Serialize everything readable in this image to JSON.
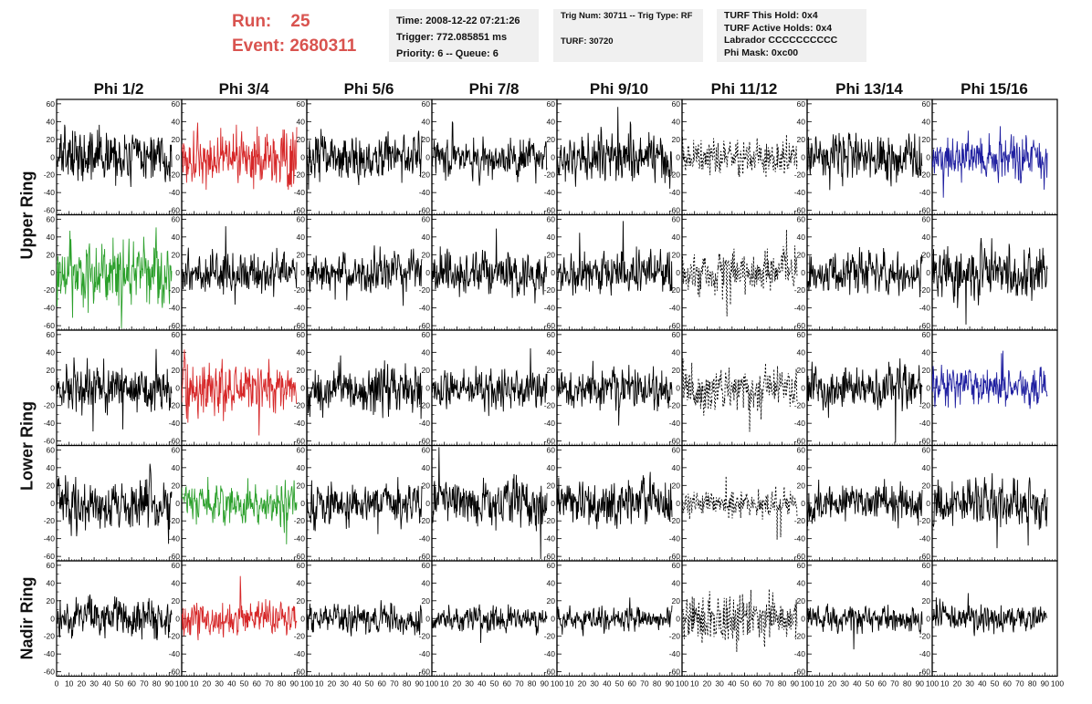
{
  "header": {
    "run_label": "Run:",
    "run_value": "25",
    "event_label": "Event:",
    "event_value": "2680311",
    "accent_color": "#d9534f"
  },
  "info": {
    "time": "Time: 2008-12-22 07:21:26",
    "trigger": "Trigger: 772.085851 ms",
    "priority": "Priority: 6 -- Queue: 6",
    "trig": "Trig Num: 30711 -- Trig Type: RF",
    "turf": "TURF: 30720",
    "turf_hold": "TURF This Hold: 0x4",
    "turf_active": "TURF Active Holds: 0x4",
    "labrador": "Labrador CCCCCCCCCC",
    "phi_mask": "Phi Mask: 0xc00"
  },
  "chart_data": {
    "type": "line",
    "columns": [
      "Phi 1/2",
      "Phi 3/4",
      "Phi 5/6",
      "Phi 7/8",
      "Phi 9/10",
      "Phi 11/12",
      "Phi 13/14",
      "Phi 15/16"
    ],
    "ring_labels": [
      "Upper Ring",
      "Lower Ring",
      "Nadir Ring"
    ],
    "rows_per_ring": [
      2,
      2,
      1
    ],
    "ylim": [
      -65,
      65
    ],
    "yticks": [
      -60,
      -40,
      -20,
      0,
      20,
      40,
      60
    ],
    "xlim": [
      0,
      100
    ],
    "xticks": [
      0,
      10,
      20,
      30,
      40,
      50,
      60,
      70,
      80,
      90,
      100
    ],
    "x_tick_labels": [
      "0",
      "10",
      "20",
      "30",
      "40",
      "50",
      "60",
      "70",
      "80",
      "90",
      "100"
    ],
    "n_samples": 260,
    "x_end": 92,
    "colors": {
      "default": "#000000",
      "red": "#d62728",
      "green": "#2ca02c",
      "blue": "#1f1fa0"
    },
    "panels": [
      {
        "row": 0,
        "col": 0,
        "color": "default",
        "amplitude": 18,
        "dashed": false
      },
      {
        "row": 0,
        "col": 1,
        "color": "red",
        "amplitude": 20,
        "dashed": false
      },
      {
        "row": 0,
        "col": 2,
        "color": "default",
        "amplitude": 16,
        "dashed": false
      },
      {
        "row": 0,
        "col": 3,
        "color": "default",
        "amplitude": 13,
        "dashed": false
      },
      {
        "row": 0,
        "col": 4,
        "color": "default",
        "amplitude": 17,
        "dashed": false
      },
      {
        "row": 0,
        "col": 5,
        "color": "default",
        "amplitude": 12,
        "dashed": true
      },
      {
        "row": 0,
        "col": 6,
        "color": "default",
        "amplitude": 17,
        "dashed": false
      },
      {
        "row": 0,
        "col": 7,
        "color": "blue",
        "amplitude": 17,
        "dashed": false
      },
      {
        "row": 1,
        "col": 0,
        "color": "green",
        "amplitude": 24,
        "dashed": false
      },
      {
        "row": 1,
        "col": 1,
        "color": "default",
        "amplitude": 13,
        "dashed": false
      },
      {
        "row": 1,
        "col": 2,
        "color": "default",
        "amplitude": 15,
        "dashed": false
      },
      {
        "row": 1,
        "col": 3,
        "color": "default",
        "amplitude": 15,
        "dashed": false
      },
      {
        "row": 1,
        "col": 4,
        "color": "default",
        "amplitude": 15,
        "dashed": false
      },
      {
        "row": 1,
        "col": 5,
        "color": "default",
        "amplitude": 14,
        "dashed": true
      },
      {
        "row": 1,
        "col": 6,
        "color": "default",
        "amplitude": 14,
        "dashed": false
      },
      {
        "row": 1,
        "col": 7,
        "color": "default",
        "amplitude": 18,
        "dashed": false
      },
      {
        "row": 2,
        "col": 0,
        "color": "default",
        "amplitude": 17,
        "dashed": false
      },
      {
        "row": 2,
        "col": 1,
        "color": "red",
        "amplitude": 18,
        "dashed": false
      },
      {
        "row": 2,
        "col": 2,
        "color": "default",
        "amplitude": 17,
        "dashed": false
      },
      {
        "row": 2,
        "col": 3,
        "color": "default",
        "amplitude": 13,
        "dashed": false
      },
      {
        "row": 2,
        "col": 4,
        "color": "default",
        "amplitude": 14,
        "dashed": false
      },
      {
        "row": 2,
        "col": 5,
        "color": "default",
        "amplitude": 15,
        "dashed": true
      },
      {
        "row": 2,
        "col": 6,
        "color": "default",
        "amplitude": 16,
        "dashed": false
      },
      {
        "row": 2,
        "col": 7,
        "color": "blue",
        "amplitude": 14,
        "dashed": false
      },
      {
        "row": 3,
        "col": 0,
        "color": "default",
        "amplitude": 17,
        "dashed": false
      },
      {
        "row": 3,
        "col": 1,
        "color": "green",
        "amplitude": 14,
        "dashed": false
      },
      {
        "row": 3,
        "col": 2,
        "color": "default",
        "amplitude": 15,
        "dashed": false
      },
      {
        "row": 3,
        "col": 3,
        "color": "default",
        "amplitude": 16,
        "dashed": false
      },
      {
        "row": 3,
        "col": 4,
        "color": "default",
        "amplitude": 15,
        "dashed": false
      },
      {
        "row": 3,
        "col": 5,
        "color": "default",
        "amplitude": 10,
        "dashed": true
      },
      {
        "row": 3,
        "col": 6,
        "color": "default",
        "amplitude": 14,
        "dashed": false
      },
      {
        "row": 3,
        "col": 7,
        "color": "default",
        "amplitude": 16,
        "dashed": false
      },
      {
        "row": 4,
        "col": 0,
        "color": "default",
        "amplitude": 13,
        "dashed": false
      },
      {
        "row": 4,
        "col": 1,
        "color": "red",
        "amplitude": 12,
        "dashed": false
      },
      {
        "row": 4,
        "col": 2,
        "color": "default",
        "amplitude": 10,
        "dashed": false
      },
      {
        "row": 4,
        "col": 3,
        "color": "default",
        "amplitude": 9,
        "dashed": false
      },
      {
        "row": 4,
        "col": 4,
        "color": "default",
        "amplitude": 9,
        "dashed": false
      },
      {
        "row": 4,
        "col": 5,
        "color": "default",
        "amplitude": 18,
        "dashed": true
      },
      {
        "row": 4,
        "col": 6,
        "color": "default",
        "amplitude": 9,
        "dashed": false
      },
      {
        "row": 4,
        "col": 7,
        "color": "default",
        "amplitude": 9,
        "dashed": false
      }
    ]
  }
}
